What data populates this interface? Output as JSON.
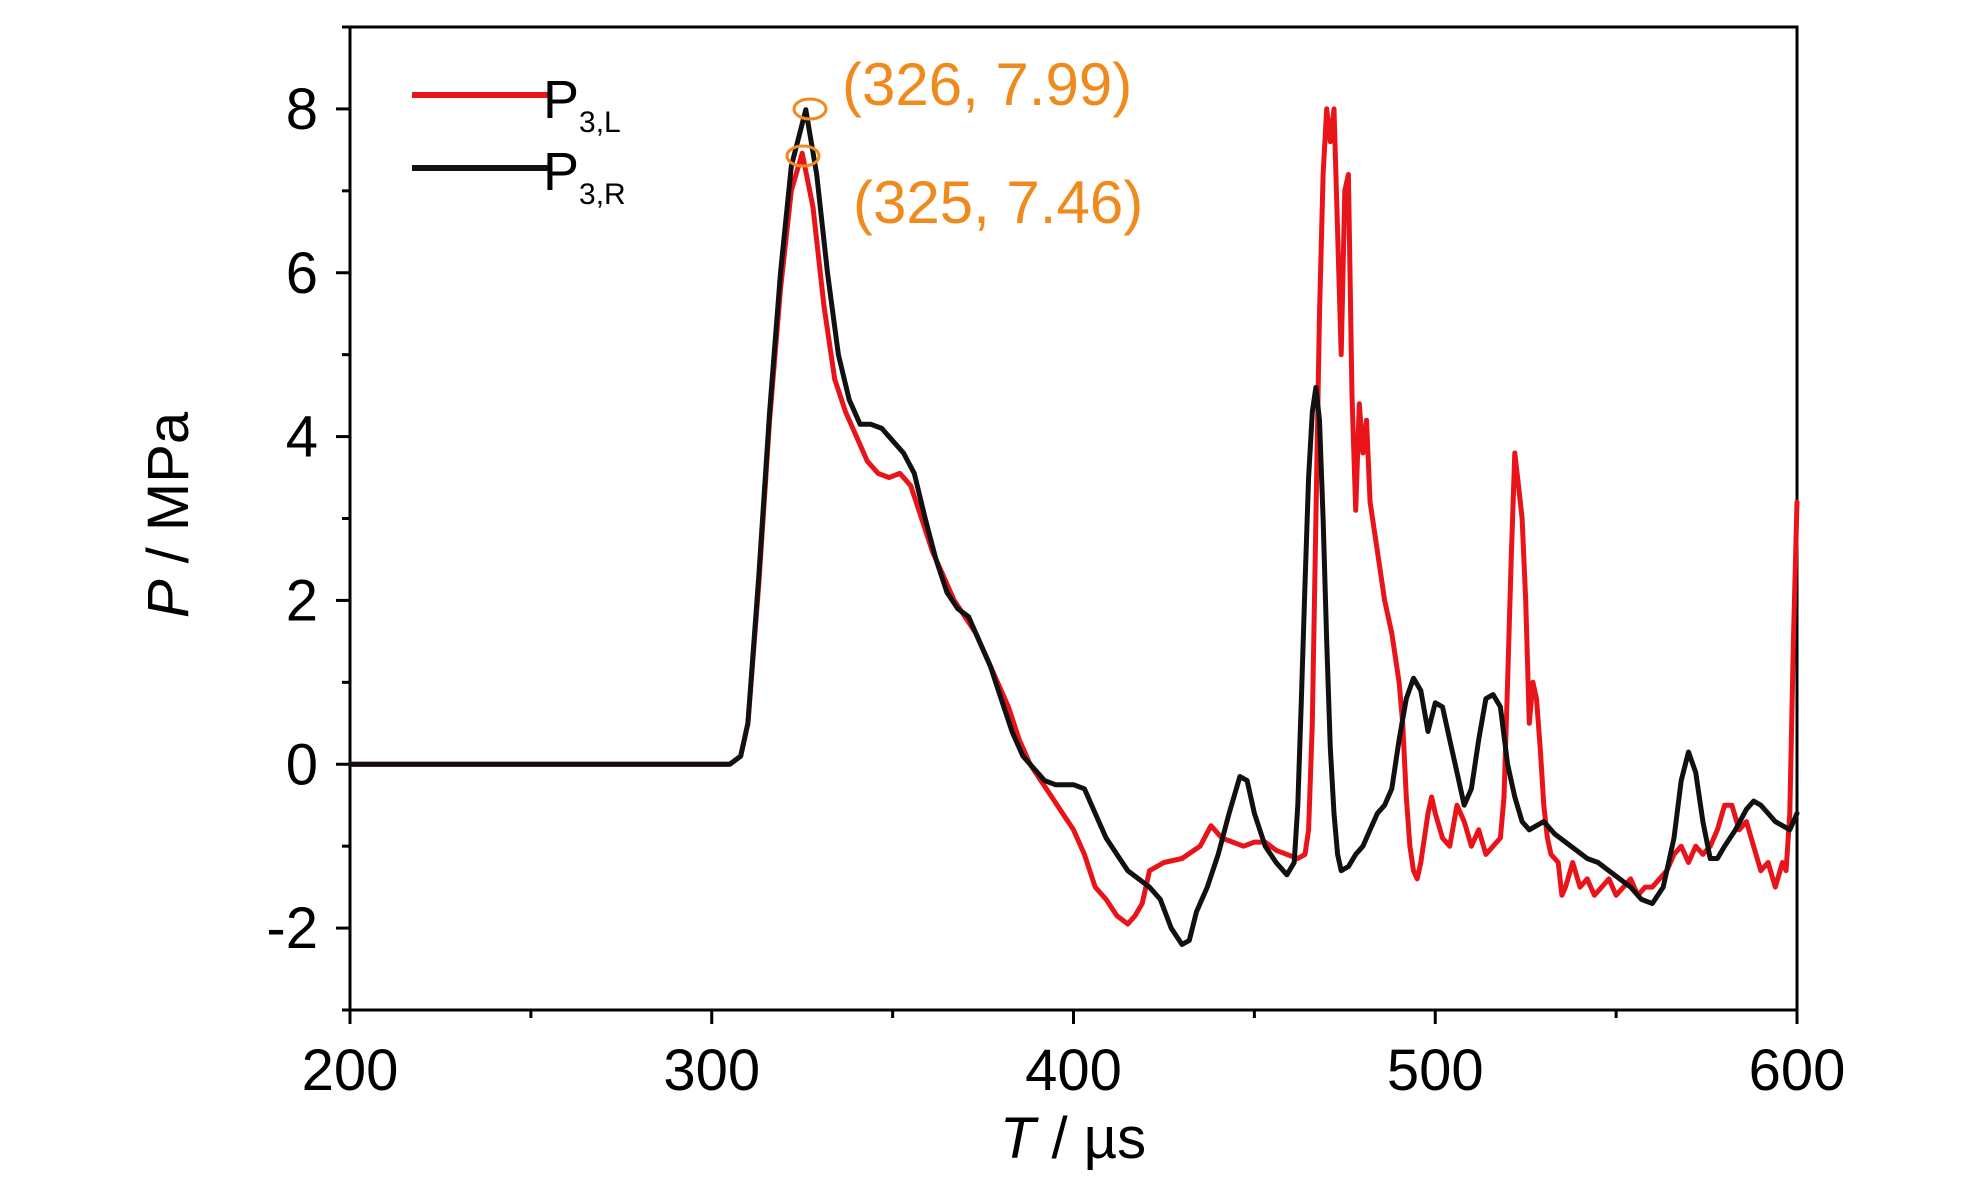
{
  "chart_data": {
    "type": "line",
    "xlabel": {
      "var": "T",
      "unit": " / µs"
    },
    "ylabel": {
      "var": "P",
      "unit": " / MPa"
    },
    "xlim": [
      200,
      600
    ],
    "ylim": [
      -3,
      9
    ],
    "x_ticks": [
      "200",
      "300",
      "400",
      "500",
      "600"
    ],
    "y_ticks": [
      "-2",
      "0",
      "2",
      "4",
      "6",
      "8"
    ],
    "grid": false,
    "legend_position": "top-left",
    "series": [
      {
        "name": "P",
        "subscript": "3,L",
        "color": "#e8141a",
        "points": [
          [
            200,
            0
          ],
          [
            210,
            0
          ],
          [
            220,
            0
          ],
          [
            230,
            0
          ],
          [
            250,
            0
          ],
          [
            270,
            0
          ],
          [
            290,
            0
          ],
          [
            300,
            0
          ],
          [
            305,
            0
          ],
          [
            308,
            0.1
          ],
          [
            310,
            0.5
          ],
          [
            313,
            2.2
          ],
          [
            316,
            4.2
          ],
          [
            319,
            5.8
          ],
          [
            322,
            7.0
          ],
          [
            325,
            7.46
          ],
          [
            328,
            6.8
          ],
          [
            331,
            5.6
          ],
          [
            334,
            4.7
          ],
          [
            337,
            4.3
          ],
          [
            340,
            4.0
          ],
          [
            343,
            3.7
          ],
          [
            346,
            3.55
          ],
          [
            349,
            3.5
          ],
          [
            352,
            3.55
          ],
          [
            355,
            3.4
          ],
          [
            358,
            3.0
          ],
          [
            361,
            2.6
          ],
          [
            364,
            2.3
          ],
          [
            367,
            2.0
          ],
          [
            370,
            1.8
          ],
          [
            373,
            1.6
          ],
          [
            376,
            1.3
          ],
          [
            379,
            1.0
          ],
          [
            382,
            0.7
          ],
          [
            385,
            0.3
          ],
          [
            388,
            0
          ],
          [
            391,
            -0.2
          ],
          [
            394,
            -0.4
          ],
          [
            397,
            -0.6
          ],
          [
            400,
            -0.8
          ],
          [
            403,
            -1.1
          ],
          [
            406,
            -1.5
          ],
          [
            409,
            -1.65
          ],
          [
            412,
            -1.85
          ],
          [
            415,
            -1.95
          ],
          [
            417,
            -1.85
          ],
          [
            419,
            -1.7
          ],
          [
            421,
            -1.3
          ],
          [
            425,
            -1.2
          ],
          [
            430,
            -1.15
          ],
          [
            435,
            -1.0
          ],
          [
            438,
            -0.75
          ],
          [
            441,
            -0.9
          ],
          [
            444,
            -0.95
          ],
          [
            447,
            -1.0
          ],
          [
            450,
            -0.95
          ],
          [
            453,
            -0.95
          ],
          [
            456,
            -1.05
          ],
          [
            459,
            -1.1
          ],
          [
            462,
            -1.15
          ],
          [
            464,
            -1.1
          ],
          [
            465,
            -0.8
          ],
          [
            466,
            0.5
          ],
          [
            467,
            3.0
          ],
          [
            468,
            5.5
          ],
          [
            469,
            7.2
          ],
          [
            470,
            8.0
          ],
          [
            471,
            7.6
          ],
          [
            472,
            8.0
          ],
          [
            473,
            6.5
          ],
          [
            474,
            5.0
          ],
          [
            475,
            7.0
          ],
          [
            476,
            7.2
          ],
          [
            477,
            4.5
          ],
          [
            478,
            3.1
          ],
          [
            479,
            4.4
          ],
          [
            480,
            3.8
          ],
          [
            481,
            4.2
          ],
          [
            482,
            3.2
          ],
          [
            484,
            2.6
          ],
          [
            486,
            2.0
          ],
          [
            488,
            1.6
          ],
          [
            490,
            1.0
          ],
          [
            491,
            0.5
          ],
          [
            492,
            -0.4
          ],
          [
            493,
            -1.0
          ],
          [
            494,
            -1.3
          ],
          [
            495,
            -1.4
          ],
          [
            496,
            -1.2
          ],
          [
            497,
            -0.9
          ],
          [
            498,
            -0.6
          ],
          [
            499,
            -0.4
          ],
          [
            500,
            -0.6
          ],
          [
            502,
            -0.9
          ],
          [
            504,
            -1.0
          ],
          [
            506,
            -0.5
          ],
          [
            508,
            -0.7
          ],
          [
            510,
            -1.0
          ],
          [
            512,
            -0.8
          ],
          [
            514,
            -1.1
          ],
          [
            516,
            -1.0
          ],
          [
            518,
            -0.9
          ],
          [
            519,
            -0.4
          ],
          [
            520,
            1.0
          ],
          [
            521,
            2.5
          ],
          [
            522,
            3.8
          ],
          [
            523,
            3.4
          ],
          [
            524,
            3.0
          ],
          [
            525,
            2.0
          ],
          [
            526,
            0.5
          ],
          [
            527,
            1.0
          ],
          [
            528,
            0.8
          ],
          [
            529,
            0.2
          ],
          [
            530,
            -0.5
          ],
          [
            531,
            -0.9
          ],
          [
            532,
            -1.1
          ],
          [
            534,
            -1.2
          ],
          [
            535,
            -1.6
          ],
          [
            536,
            -1.5
          ],
          [
            538,
            -1.2
          ],
          [
            540,
            -1.5
          ],
          [
            542,
            -1.4
          ],
          [
            544,
            -1.6
          ],
          [
            546,
            -1.5
          ],
          [
            548,
            -1.4
          ],
          [
            550,
            -1.6
          ],
          [
            552,
            -1.5
          ],
          [
            554,
            -1.4
          ],
          [
            556,
            -1.6
          ],
          [
            558,
            -1.5
          ],
          [
            560,
            -1.5
          ],
          [
            562,
            -1.4
          ],
          [
            564,
            -1.3
          ],
          [
            566,
            -1.1
          ],
          [
            568,
            -1.0
          ],
          [
            570,
            -1.2
          ],
          [
            572,
            -1.0
          ],
          [
            574,
            -1.1
          ],
          [
            576,
            -1.0
          ],
          [
            578,
            -0.8
          ],
          [
            580,
            -0.5
          ],
          [
            582,
            -0.5
          ],
          [
            584,
            -0.8
          ],
          [
            586,
            -0.7
          ],
          [
            588,
            -1.0
          ],
          [
            590,
            -1.3
          ],
          [
            592,
            -1.2
          ],
          [
            594,
            -1.5
          ],
          [
            596,
            -1.2
          ],
          [
            597,
            -1.3
          ],
          [
            598,
            -0.6
          ],
          [
            599,
            1.5
          ],
          [
            600,
            3.2
          ]
        ]
      },
      {
        "name": "P",
        "subscript": "3,R",
        "color": "#111111",
        "points": [
          [
            200,
            0
          ],
          [
            220,
            0
          ],
          [
            240,
            0
          ],
          [
            260,
            0
          ],
          [
            280,
            0
          ],
          [
            300,
            0
          ],
          [
            305,
            0
          ],
          [
            308,
            0.1
          ],
          [
            310,
            0.5
          ],
          [
            313,
            2.3
          ],
          [
            316,
            4.3
          ],
          [
            319,
            6.0
          ],
          [
            322,
            7.3
          ],
          [
            326,
            7.99
          ],
          [
            329,
            7.2
          ],
          [
            332,
            6.0
          ],
          [
            335,
            5.0
          ],
          [
            338,
            4.45
          ],
          [
            341,
            4.15
          ],
          [
            344,
            4.15
          ],
          [
            347,
            4.1
          ],
          [
            350,
            3.95
          ],
          [
            353,
            3.8
          ],
          [
            356,
            3.55
          ],
          [
            359,
            3.0
          ],
          [
            362,
            2.5
          ],
          [
            365,
            2.1
          ],
          [
            368,
            1.9
          ],
          [
            371,
            1.8
          ],
          [
            374,
            1.5
          ],
          [
            377,
            1.2
          ],
          [
            380,
            0.8
          ],
          [
            383,
            0.4
          ],
          [
            386,
            0.1
          ],
          [
            389,
            -0.05
          ],
          [
            392,
            -0.2
          ],
          [
            395,
            -0.25
          ],
          [
            398,
            -0.25
          ],
          [
            400,
            -0.25
          ],
          [
            403,
            -0.3
          ],
          [
            406,
            -0.6
          ],
          [
            409,
            -0.9
          ],
          [
            412,
            -1.1
          ],
          [
            415,
            -1.3
          ],
          [
            418,
            -1.4
          ],
          [
            421,
            -1.5
          ],
          [
            424,
            -1.65
          ],
          [
            427,
            -2.0
          ],
          [
            430,
            -2.2
          ],
          [
            432,
            -2.15
          ],
          [
            434,
            -1.8
          ],
          [
            437,
            -1.5
          ],
          [
            440,
            -1.1
          ],
          [
            443,
            -0.6
          ],
          [
            446,
            -0.15
          ],
          [
            448,
            -0.2
          ],
          [
            450,
            -0.6
          ],
          [
            453,
            -1.0
          ],
          [
            456,
            -1.2
          ],
          [
            459,
            -1.35
          ],
          [
            461,
            -1.2
          ],
          [
            462,
            -0.5
          ],
          [
            463,
            0.8
          ],
          [
            464,
            2.2
          ],
          [
            465,
            3.5
          ],
          [
            466,
            4.3
          ],
          [
            467,
            4.6
          ],
          [
            468,
            4.2
          ],
          [
            469,
            3.0
          ],
          [
            470,
            1.5
          ],
          [
            471,
            0.2
          ],
          [
            472,
            -0.6
          ],
          [
            473,
            -1.1
          ],
          [
            474,
            -1.3
          ],
          [
            476,
            -1.25
          ],
          [
            478,
            -1.1
          ],
          [
            480,
            -1.0
          ],
          [
            482,
            -0.8
          ],
          [
            484,
            -0.6
          ],
          [
            486,
            -0.5
          ],
          [
            488,
            -0.3
          ],
          [
            490,
            0.3
          ],
          [
            492,
            0.8
          ],
          [
            494,
            1.05
          ],
          [
            496,
            0.9
          ],
          [
            498,
            0.4
          ],
          [
            500,
            0.75
          ],
          [
            502,
            0.7
          ],
          [
            504,
            0.3
          ],
          [
            506,
            -0.1
          ],
          [
            508,
            -0.5
          ],
          [
            510,
            -0.3
          ],
          [
            512,
            0.3
          ],
          [
            514,
            0.8
          ],
          [
            516,
            0.85
          ],
          [
            518,
            0.7
          ],
          [
            520,
            0.0
          ],
          [
            522,
            -0.4
          ],
          [
            524,
            -0.7
          ],
          [
            526,
            -0.8
          ],
          [
            528,
            -0.75
          ],
          [
            530,
            -0.7
          ],
          [
            533,
            -0.85
          ],
          [
            536,
            -0.95
          ],
          [
            539,
            -1.05
          ],
          [
            542,
            -1.15
          ],
          [
            545,
            -1.2
          ],
          [
            548,
            -1.3
          ],
          [
            551,
            -1.4
          ],
          [
            554,
            -1.5
          ],
          [
            557,
            -1.65
          ],
          [
            560,
            -1.7
          ],
          [
            563,
            -1.5
          ],
          [
            566,
            -0.9
          ],
          [
            568,
            -0.2
          ],
          [
            570,
            0.15
          ],
          [
            572,
            -0.1
          ],
          [
            574,
            -0.7
          ],
          [
            576,
            -1.15
          ],
          [
            578,
            -1.15
          ],
          [
            580,
            -1.0
          ],
          [
            583,
            -0.8
          ],
          [
            586,
            -0.55
          ],
          [
            588,
            -0.45
          ],
          [
            590,
            -0.5
          ],
          [
            592,
            -0.6
          ],
          [
            594,
            -0.7
          ],
          [
            596,
            -0.75
          ],
          [
            598,
            -0.8
          ],
          [
            600,
            -0.6
          ]
        ]
      }
    ],
    "annotations": [
      {
        "text": "(326, 7.99)",
        "x": 326,
        "y": 7.99,
        "color": "#f08a1c"
      },
      {
        "text": "(325, 7.46)",
        "x": 325,
        "y": 7.46,
        "color": "#f08a1c"
      }
    ]
  }
}
